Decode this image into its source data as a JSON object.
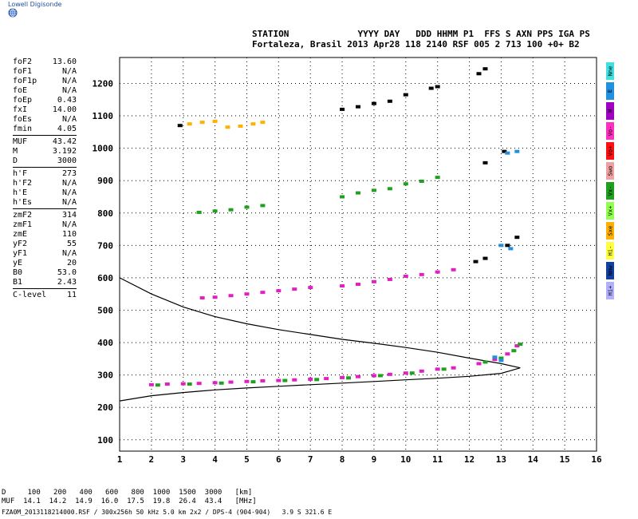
{
  "brand": "Lowell Digisonde",
  "header": {
    "line1": "STATION             YYYY DAY   DDD HHMM P1  FFS S AXN PPS IGA PS",
    "line2": "Fortaleza, Brasil 2013 Apr28 118 2140 RSF 005 2 713 100 +0+ B2"
  },
  "params": [
    {
      "k": "foF2",
      "v": "13.60"
    },
    {
      "k": "foF1",
      "v": "N/A"
    },
    {
      "k": "foF1p",
      "v": "N/A"
    },
    {
      "k": "foE",
      "v": "N/A"
    },
    {
      "k": "foEp",
      "v": "0.43"
    },
    {
      "k": "fxI",
      "v": "14.00"
    },
    {
      "k": "foEs",
      "v": "N/A"
    },
    {
      "k": "fmin",
      "v": "4.05"
    },
    {
      "k": "MUF",
      "v": "43.42"
    },
    {
      "k": "M",
      "v": "3.192"
    },
    {
      "k": "D",
      "v": "3000"
    },
    {
      "k": "h'F",
      "v": "273"
    },
    {
      "k": "h'F2",
      "v": "N/A"
    },
    {
      "k": "h'E",
      "v": "N/A"
    },
    {
      "k": "h'Es",
      "v": "N/A"
    },
    {
      "k": "zmF2",
      "v": "314"
    },
    {
      "k": "zmF1",
      "v": "N/A"
    },
    {
      "k": "zmE",
      "v": "110"
    },
    {
      "k": "yF2",
      "v": "55"
    },
    {
      "k": "yF1",
      "v": "N/A"
    },
    {
      "k": "yE",
      "v": "20"
    },
    {
      "k": "B0",
      "v": "53.0"
    },
    {
      "k": "B1",
      "v": "2.43"
    },
    {
      "k": "C-level",
      "v": "11"
    }
  ],
  "side_buttons": [
    {
      "label": "Nne",
      "color": "#40e0e0"
    },
    {
      "label": "E",
      "color": "#2090e0"
    },
    {
      "label": "W",
      "color": "#a000c0"
    },
    {
      "label": "Vo-",
      "color": "#ff30c0"
    },
    {
      "label": "Vo+",
      "color": "#ff1010"
    },
    {
      "label": "Swo",
      "color": "#f0a0a0"
    },
    {
      "label": "Vx-",
      "color": "#20a020"
    },
    {
      "label": "Vx+",
      "color": "#90ff50"
    },
    {
      "label": "Sxe",
      "color": "#ffb000"
    },
    {
      "label": "Hi-",
      "color": "#ffff40"
    },
    {
      "label": "Nmw",
      "color": "#1040a0"
    },
    {
      "label": "Hi+",
      "color": "#b0b0ff"
    }
  ],
  "footer": {
    "line1": "D     100   200   400   600   800  1000  1500  3000   [km]",
    "line2": "MUF  14.1  14.2  14.9  16.0  17.5  19.8  26.4  43.4   [MHz]",
    "line3": "FZA0M_2013118214000.RSF / 300x256h 50 kHz 5.0 km 2x2 / DPS-4 (904-904)   3.9 S 321.6 E"
  },
  "chart_data": {
    "type": "scatter",
    "xlim": [
      1,
      16
    ],
    "ylim": [
      65,
      1280
    ],
    "xticks": [
      1,
      2,
      3,
      4,
      5,
      6,
      7,
      8,
      9,
      10,
      11,
      12,
      13,
      14,
      15,
      16
    ],
    "yticks": [
      100,
      200,
      300,
      400,
      500,
      600,
      700,
      800,
      900,
      1000,
      1100,
      1200
    ],
    "grid": true,
    "traces": [
      {
        "color": "#e020c0",
        "points": [
          [
            2.0,
            270
          ],
          [
            2.5,
            272
          ],
          [
            3.0,
            273
          ],
          [
            3.5,
            274
          ],
          [
            4.0,
            276
          ],
          [
            4.5,
            278
          ],
          [
            5.0,
            280
          ],
          [
            5.5,
            282
          ],
          [
            6.0,
            283
          ],
          [
            6.5,
            285
          ],
          [
            7.0,
            287
          ],
          [
            7.5,
            289
          ],
          [
            8.0,
            292
          ],
          [
            8.5,
            295
          ],
          [
            9.0,
            298
          ],
          [
            9.5,
            302
          ],
          [
            10.0,
            306
          ],
          [
            10.5,
            312
          ],
          [
            11.0,
            318
          ],
          [
            11.5,
            322
          ],
          [
            12.3,
            335
          ],
          [
            12.8,
            348
          ],
          [
            13.2,
            365
          ],
          [
            13.5,
            390
          ]
        ]
      },
      {
        "color": "#20a020",
        "points": [
          [
            2.2,
            269
          ],
          [
            3.2,
            272
          ],
          [
            4.2,
            275
          ],
          [
            5.2,
            279
          ],
          [
            6.2,
            283
          ],
          [
            7.2,
            286
          ],
          [
            8.2,
            291
          ],
          [
            9.2,
            298
          ],
          [
            10.2,
            306
          ],
          [
            11.2,
            318
          ],
          [
            12.5,
            340
          ],
          [
            13.0,
            352
          ],
          [
            13.4,
            375
          ],
          [
            13.6,
            395
          ]
        ]
      },
      {
        "color": "#e020c0",
        "points": [
          [
            3.6,
            538
          ],
          [
            4.0,
            540
          ],
          [
            4.5,
            545
          ],
          [
            5.0,
            550
          ],
          [
            5.5,
            555
          ],
          [
            6.0,
            560
          ],
          [
            6.5,
            565
          ],
          [
            7.0,
            570
          ],
          [
            8.0,
            575
          ],
          [
            8.5,
            580
          ],
          [
            9.0,
            588
          ],
          [
            9.5,
            595
          ],
          [
            10.0,
            605
          ],
          [
            10.5,
            610
          ],
          [
            11.0,
            618
          ],
          [
            11.5,
            625
          ]
        ]
      },
      {
        "color": "#20a020",
        "points": [
          [
            3.5,
            802
          ],
          [
            4.0,
            806
          ],
          [
            4.5,
            810
          ],
          [
            5.0,
            818
          ],
          [
            5.5,
            823
          ],
          [
            8.0,
            850
          ],
          [
            8.5,
            862
          ],
          [
            9.0,
            870
          ],
          [
            9.5,
            875
          ],
          [
            10.0,
            890
          ],
          [
            10.5,
            898
          ],
          [
            11.0,
            910
          ]
        ]
      },
      {
        "color": "#ffb000",
        "points": [
          [
            3.2,
            1075
          ],
          [
            3.6,
            1080
          ],
          [
            4.0,
            1083
          ],
          [
            4.4,
            1065
          ],
          [
            4.8,
            1068
          ],
          [
            5.2,
            1075
          ],
          [
            5.5,
            1080
          ]
        ]
      },
      {
        "color": "#000000",
        "points": [
          [
            2.9,
            1070
          ],
          [
            8.0,
            1120
          ],
          [
            8.5,
            1128
          ],
          [
            9.0,
            1138
          ],
          [
            9.5,
            1145
          ],
          [
            10.0,
            1165
          ],
          [
            10.8,
            1185
          ],
          [
            11.0,
            1190
          ],
          [
            12.3,
            1230
          ],
          [
            12.5,
            1245
          ],
          [
            12.2,
            650
          ],
          [
            12.5,
            660
          ],
          [
            13.2,
            700
          ],
          [
            13.5,
            725
          ],
          [
            12.5,
            955
          ],
          [
            13.1,
            990
          ]
        ]
      },
      {
        "color": "#2090e0",
        "points": [
          [
            13.0,
            700
          ],
          [
            13.3,
            690
          ],
          [
            13.2,
            985
          ],
          [
            13.5,
            990
          ],
          [
            12.8,
            355
          ],
          [
            13.0,
            345
          ]
        ]
      }
    ],
    "profile": {
      "upper": [
        [
          1.0,
          600
        ],
        [
          2.0,
          550
        ],
        [
          3.0,
          510
        ],
        [
          4.0,
          480
        ],
        [
          5.0,
          458
        ],
        [
          6.0,
          440
        ],
        [
          7.0,
          425
        ],
        [
          8.0,
          410
        ],
        [
          9.0,
          398
        ],
        [
          10.0,
          385
        ],
        [
          11.0,
          370
        ],
        [
          12.0,
          352
        ],
        [
          13.0,
          335
        ],
        [
          13.6,
          322
        ]
      ],
      "lower": [
        [
          13.6,
          322
        ],
        [
          13.0,
          305
        ],
        [
          12.0,
          296
        ],
        [
          11.0,
          290
        ],
        [
          10.0,
          285
        ],
        [
          9.0,
          280
        ],
        [
          8.0,
          275
        ],
        [
          7.0,
          270
        ],
        [
          6.0,
          265
        ],
        [
          5.0,
          260
        ],
        [
          4.0,
          254
        ],
        [
          3.0,
          246
        ],
        [
          2.0,
          236
        ],
        [
          1.0,
          220
        ]
      ]
    }
  }
}
